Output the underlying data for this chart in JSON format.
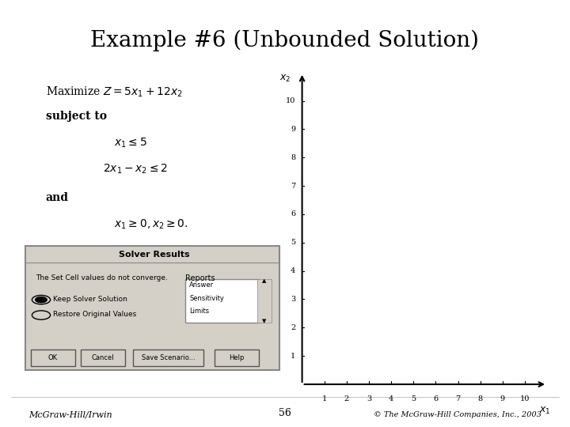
{
  "title": "Example #6 (Unbounded Solution)",
  "title_fontsize": 20,
  "background_color": "#ffffff",
  "text_color": "#000000",
  "maximize_line": "Maximize $Z = 5x_1 + 12x_2$",
  "subject_to": "subject to",
  "constraint1": "$x_1 \\leq 5$",
  "constraint2": "$2x_1 - x_2 \\leq 2$",
  "and_text": "and",
  "nonnegativity": "$x_1 \\geq 0, x_2 \\geq 0.$",
  "footer_left": "McGraw-Hill/Irwin",
  "footer_center": "56",
  "footer_right": "© The McGraw-Hill Companies, Inc., 2003",
  "graph_x_label": "$x_1$",
  "graph_y_label": "$x_2$",
  "graph_x_ticks": [
    1,
    2,
    3,
    4,
    5,
    6,
    7,
    8,
    9,
    10
  ],
  "graph_y_ticks": [
    1,
    2,
    3,
    4,
    5,
    6,
    7,
    8,
    9,
    10
  ],
  "graph_xlim": [
    0,
    11
  ],
  "graph_ylim": [
    0,
    11
  ],
  "solver_title": "Solver Results",
  "solver_msg": "The Set Cell values do not converge.",
  "solver_radio1": "Keep Solver Solution",
  "solver_radio2": "Restore Original Values",
  "solver_reports_label": "Reports",
  "solver_report_items": [
    "Answer",
    "Sensitivity",
    "Limits"
  ],
  "solver_buttons": [
    "OK",
    "Cancel",
    "Save Scenario...",
    "Help"
  ]
}
